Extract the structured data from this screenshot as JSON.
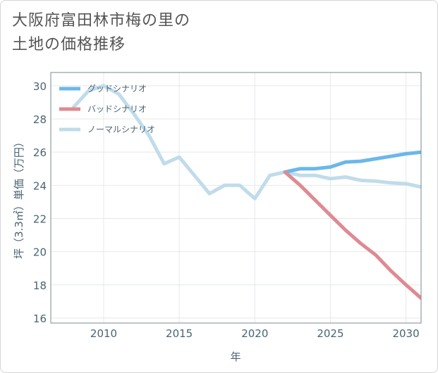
{
  "title_line1": "大阪府富田林市梅の里の",
  "title_line2": "土地の価格推移",
  "chart_data": {
    "type": "line",
    "xlabel": "年",
    "ylabel": "坪（3.3㎡）単価（万円）",
    "xlim": [
      2006.5,
      2031
    ],
    "ylim": [
      15.7,
      30.8
    ],
    "xticks": [
      2010,
      2015,
      2020,
      2025,
      2030
    ],
    "yticks": [
      16,
      18,
      20,
      22,
      24,
      26,
      28,
      30
    ],
    "grid": true,
    "legend_position": "top-left",
    "series": [
      {
        "name": "ノーマルシナリオ",
        "color": "#c0dcea",
        "x": [
          2008,
          2009,
          2010,
          2011,
          2012,
          2013,
          2014,
          2015,
          2016,
          2017,
          2018,
          2019,
          2020,
          2021,
          2022,
          2023,
          2024,
          2025,
          2026,
          2027,
          2028,
          2029,
          2030,
          2031
        ],
        "values": [
          28.7,
          29.7,
          30.0,
          29.5,
          28.3,
          27.0,
          25.3,
          25.7,
          24.6,
          23.5,
          24.0,
          24.0,
          23.2,
          24.6,
          24.8,
          24.6,
          24.6,
          24.4,
          24.5,
          24.3,
          24.25,
          24.15,
          24.1,
          23.9
        ]
      },
      {
        "name": "グッドシナリオ",
        "color": "#6bb7ea",
        "x": [
          2022,
          2023,
          2024,
          2025,
          2026,
          2027,
          2028,
          2029,
          2030,
          2031
        ],
        "values": [
          24.8,
          25.0,
          25.0,
          25.1,
          25.4,
          25.45,
          25.6,
          25.75,
          25.9,
          26.0
        ]
      },
      {
        "name": "バッドシナリオ",
        "color": "#de8a92",
        "x": [
          2022,
          2023,
          2024,
          2025,
          2026,
          2027,
          2028,
          2029,
          2030,
          2031
        ],
        "values": [
          24.8,
          24.0,
          23.1,
          22.2,
          21.3,
          20.5,
          19.8,
          18.85,
          18.0,
          17.2
        ]
      }
    ],
    "legend_order": [
      "グッドシナリオ",
      "バッドシナリオ",
      "ノーマルシナリオ"
    ]
  }
}
